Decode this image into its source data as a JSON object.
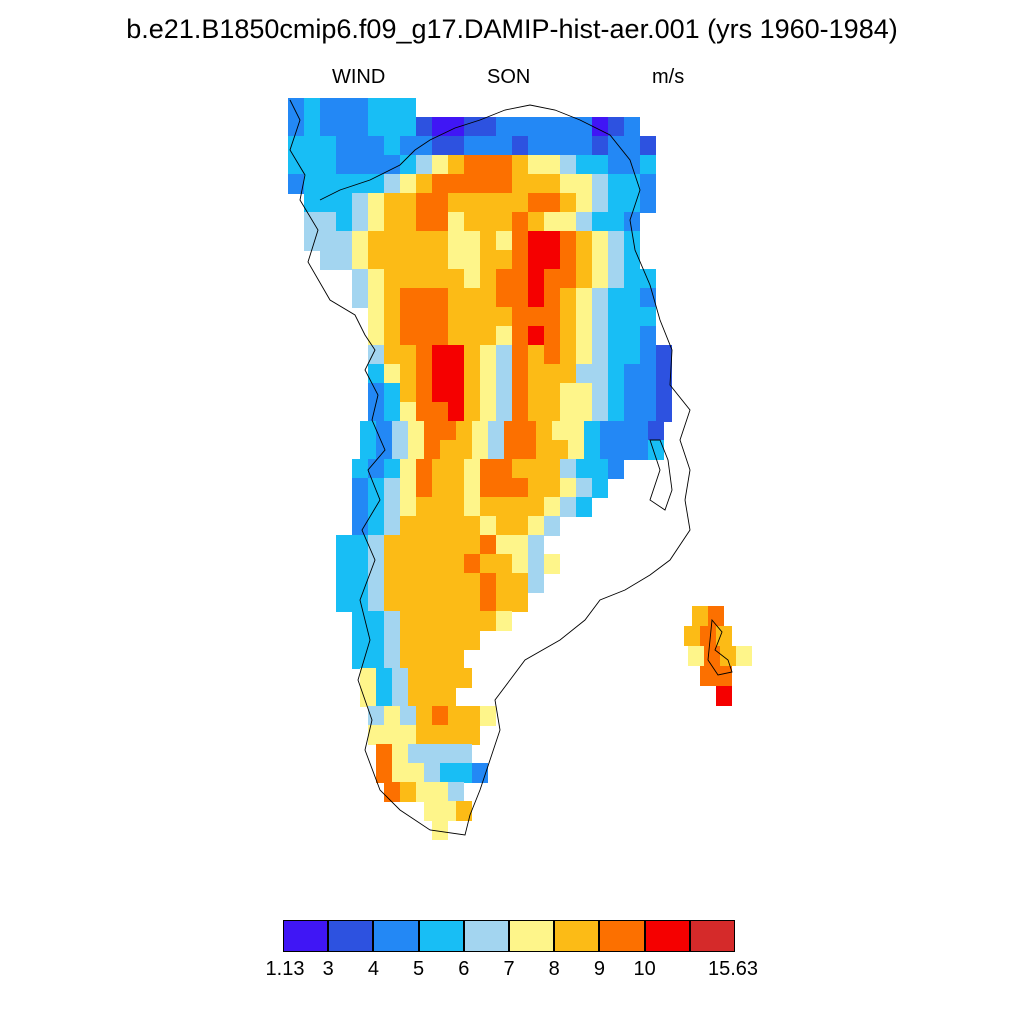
{
  "title": "b.e21.B1850cmip6.f09_g17.DAMIP-hist-aer.001 (yrs 1960-1984)",
  "subtitle": {
    "variable": "WIND",
    "season": "SON",
    "units": "m/s"
  },
  "colorbar": {
    "colors": [
      "#4016f5",
      "#2d52e0",
      "#2388f5",
      "#18bef5",
      "#a3d5f0",
      "#fef58a",
      "#fcbb16",
      "#fc7000",
      "#f50000",
      "#d52a2a"
    ],
    "labels": [
      "1.13",
      "3",
      "4",
      "5",
      "6",
      "7",
      "8",
      "9",
      "10",
      "15.63"
    ]
  },
  "map": {
    "region": "Greenland",
    "field": "WIND",
    "palette_by_class": [
      "#4016f5",
      "#2d52e0",
      "#2388f5",
      "#18bef5",
      "#a3d5f0",
      "#fef58a",
      "#fcbb16",
      "#fc7000",
      "#f50000",
      "#d52a2a"
    ]
  }
}
